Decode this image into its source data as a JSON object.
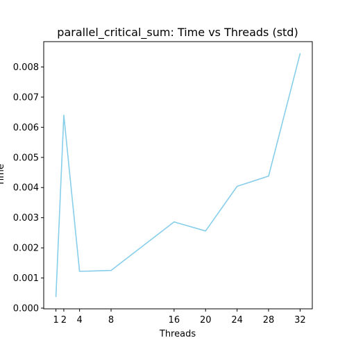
{
  "chart_data": {
    "type": "line",
    "title": "parallel_critical_sum: Time vs Threads (std)",
    "xlabel": "Threads",
    "ylabel": "Time",
    "x": [
      1,
      2,
      4,
      8,
      16,
      20,
      24,
      28,
      32
    ],
    "series": [
      {
        "values": [
          0.00038,
          0.0064,
          0.00122,
          0.00125,
          0.00286,
          0.00256,
          0.00404,
          0.00438,
          0.00844
        ],
        "color": "#87ceeb"
      }
    ],
    "xticks": [
      1,
      2,
      4,
      8,
      16,
      20,
      24,
      28,
      32
    ],
    "xtick_labels": [
      "1",
      "2",
      "4",
      "8",
      "16",
      "20",
      "24",
      "28",
      "32"
    ],
    "yticks": [
      0,
      0.001,
      0.002,
      0.003,
      0.004,
      0.005,
      0.006,
      0.007,
      0.008
    ],
    "ytick_labels": [
      "0.000",
      "0.001",
      "0.002",
      "0.003",
      "0.004",
      "0.005",
      "0.006",
      "0.007",
      "0.008"
    ],
    "xlim": [
      -0.55,
      33.55
    ],
    "ylim": [
      -2.3e-05,
      0.00884
    ],
    "grid": false,
    "legend": false
  }
}
